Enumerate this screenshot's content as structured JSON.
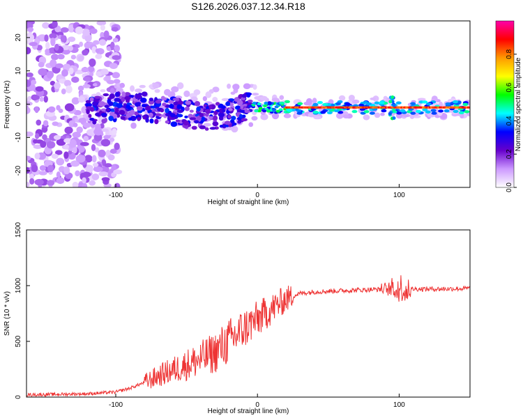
{
  "title": "S126.2026.037.12.34.R18",
  "chart_data": [
    {
      "type": "heatmap",
      "xlabel": "Height of straight line (km)",
      "ylabel": "Frequency (Hz)",
      "xlim": [
        -163,
        150
      ],
      "ylim": [
        -25,
        25
      ],
      "xticks": [
        -100,
        0,
        100
      ],
      "yticks": [
        -20,
        -10,
        0,
        10,
        20
      ],
      "colorbar": {
        "label": "Normalized spectral amplitude",
        "range": [
          0,
          1
        ],
        "ticks": [
          0.0,
          0.2,
          0.4,
          0.6,
          0.8
        ],
        "tick_labels": [
          "0.0",
          "0.2",
          "0.4",
          "0.6",
          "0.8"
        ],
        "colors": [
          "#ffffff",
          "#cc99ff",
          "#6600cc",
          "#0000ff",
          "#00ffff",
          "#00ff00",
          "#ffff00",
          "#ff9900",
          "#ff0000",
          "#ff00aa"
        ]
      },
      "features": {
        "noise_region_x": [
          -163,
          -108
        ],
        "scatter_region_x": [
          -120,
          -5
        ],
        "steady_line_x": [
          20,
          150
        ],
        "steady_line_frequency": -1,
        "burst_x": 95
      }
    },
    {
      "type": "line",
      "xlabel": "Height of straight line (km)",
      "ylabel": "SNR (10 * v/v)",
      "xlim": [
        -163,
        150
      ],
      "ylim": [
        0,
        1500
      ],
      "xticks": [
        -100,
        0,
        100
      ],
      "yticks": [
        0,
        500,
        1000,
        1500
      ],
      "color": "#ee3333",
      "x": [
        -163,
        -140,
        -120,
        -100,
        -90,
        -80,
        -70,
        -60,
        -50,
        -40,
        -30,
        -20,
        -10,
        0,
        10,
        20,
        30,
        40,
        60,
        80,
        95,
        100,
        103,
        110,
        130,
        150
      ],
      "y": [
        20,
        25,
        30,
        45,
        80,
        130,
        190,
        240,
        290,
        340,
        400,
        500,
        610,
        700,
        790,
        880,
        930,
        945,
        955,
        965,
        970,
        975,
        960,
        970,
        970,
        975
      ]
    }
  ]
}
